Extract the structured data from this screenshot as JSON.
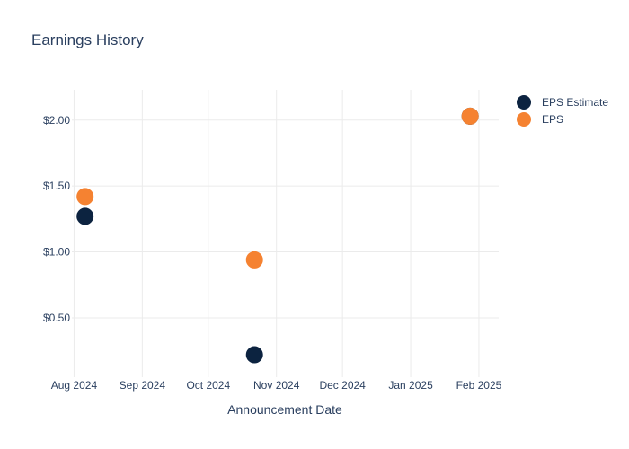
{
  "chart_data": {
    "type": "scatter",
    "title": "Earnings History",
    "xlabel": "Announcement Date",
    "ylabel": "",
    "x_ticks": [
      "Aug 2024",
      "Sep 2024",
      "Oct 2024",
      "Nov 2024",
      "Dec 2024",
      "Jan 2025",
      "Feb 2025"
    ],
    "y_ticks": [
      "$0.50",
      "$1.00",
      "$1.50",
      "$2.00"
    ],
    "y_tick_values": [
      0.5,
      1.0,
      1.5,
      2.0
    ],
    "ylim": [
      0.05,
      2.23
    ],
    "xlim": [
      "2024-07-31",
      "2025-02-10"
    ],
    "legend_position": "top-right",
    "grid": true,
    "series": [
      {
        "name": "EPS Estimate",
        "color": "#0c2340",
        "points": [
          {
            "x": "2024-08-06",
            "y": 1.27
          },
          {
            "x": "2024-10-22",
            "y": 0.22
          },
          {
            "x": "2025-01-28",
            "y": 2.03
          }
        ]
      },
      {
        "name": "EPS",
        "color": "#f58231",
        "points": [
          {
            "x": "2024-08-06",
            "y": 1.42
          },
          {
            "x": "2024-10-22",
            "y": 0.94
          },
          {
            "x": "2025-01-28",
            "y": 2.03
          }
        ]
      }
    ]
  }
}
